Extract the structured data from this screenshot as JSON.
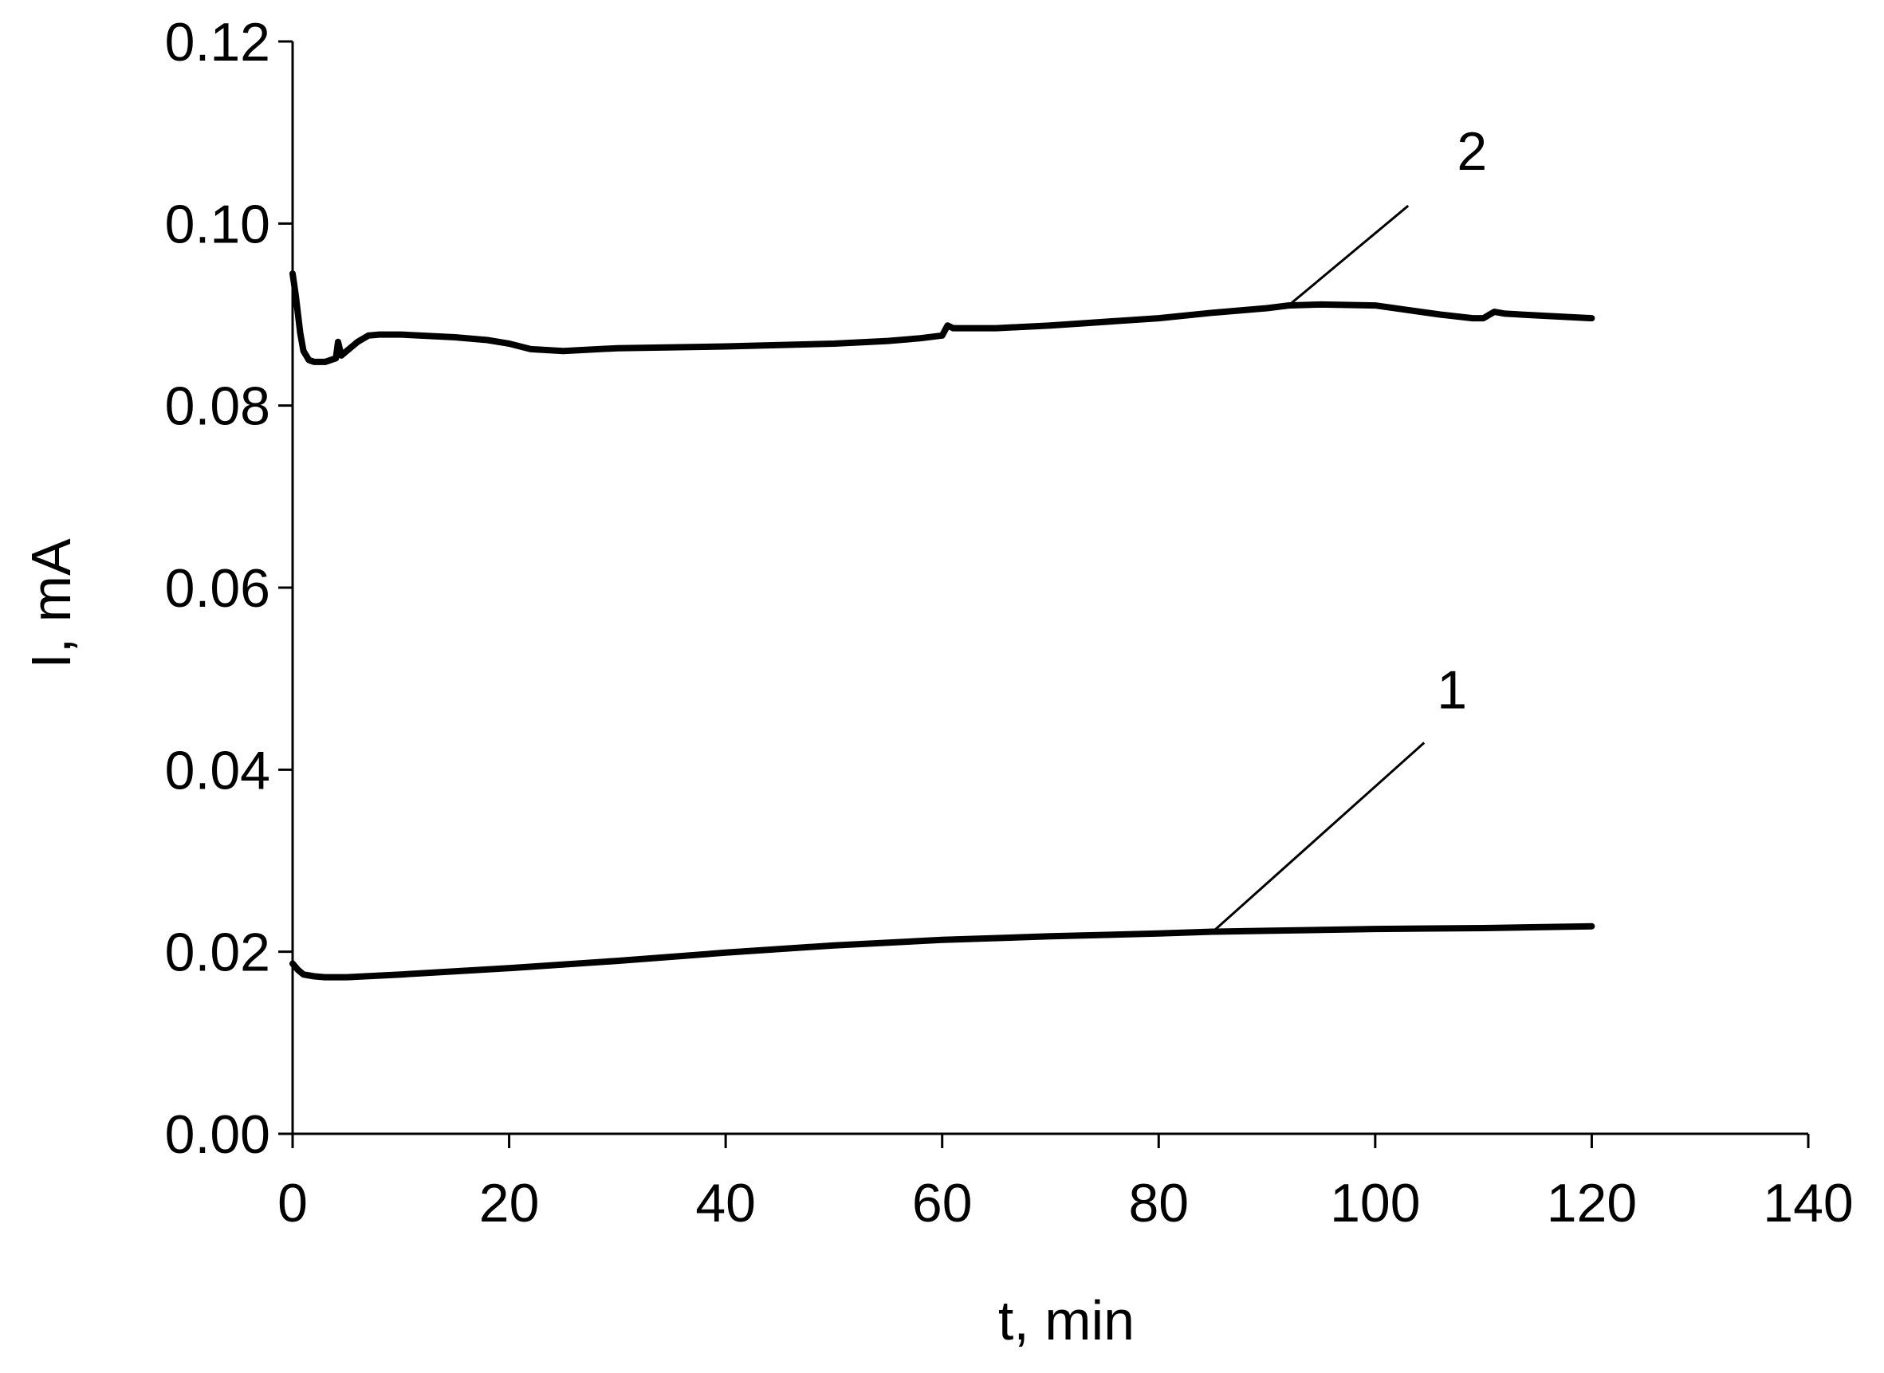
{
  "chart_data": {
    "type": "line",
    "title": "",
    "xlabel": "t, min",
    "ylabel": "I, mA",
    "xlim": [
      0,
      140
    ],
    "ylim": [
      0,
      0.12
    ],
    "x_ticks": [
      "0",
      "20",
      "40",
      "60",
      "80",
      "100",
      "120",
      "140"
    ],
    "y_ticks": [
      "0.00",
      "0.02",
      "0.04",
      "0.06",
      "0.08",
      "0.10",
      "0.12"
    ],
    "grid": false,
    "legend": "none",
    "series": [
      {
        "name": "1",
        "x": [
          0,
          0.5,
          1,
          2,
          3,
          5,
          10,
          20,
          30,
          40,
          50,
          60,
          70,
          80,
          85,
          90,
          100,
          110,
          120
        ],
        "y": [
          0.0187,
          0.018,
          0.0175,
          0.0173,
          0.0172,
          0.0172,
          0.0175,
          0.0182,
          0.019,
          0.0199,
          0.0207,
          0.0213,
          0.0217,
          0.022,
          0.0222,
          0.0223,
          0.0225,
          0.0226,
          0.0228
        ]
      },
      {
        "name": "2",
        "x": [
          0,
          0.3,
          0.7,
          1,
          1.5,
          2,
          3,
          4,
          4.2,
          4.5,
          5,
          6,
          7,
          8,
          10,
          15,
          18,
          20,
          22,
          25,
          30,
          40,
          50,
          55,
          58,
          60,
          60.5,
          61,
          62,
          65,
          70,
          80,
          85,
          90,
          92,
          95,
          100,
          103,
          106,
          109,
          110,
          111,
          112,
          115,
          120
        ],
        "y": [
          0.0945,
          0.092,
          0.088,
          0.086,
          0.085,
          0.0848,
          0.0848,
          0.0852,
          0.087,
          0.0855,
          0.086,
          0.087,
          0.0877,
          0.0878,
          0.0878,
          0.0875,
          0.0872,
          0.0868,
          0.0862,
          0.086,
          0.0863,
          0.0865,
          0.0868,
          0.0871,
          0.0874,
          0.0877,
          0.0888,
          0.0885,
          0.0885,
          0.0885,
          0.0888,
          0.0896,
          0.0902,
          0.0907,
          0.091,
          0.0911,
          0.091,
          0.0905,
          0.09,
          0.0896,
          0.0896,
          0.0903,
          0.0901,
          0.0899,
          0.0896
        ]
      }
    ],
    "annotations": [
      {
        "text": "2",
        "series": "2",
        "x": 92,
        "y": 0.091
      },
      {
        "text": "1",
        "series": "1",
        "x": 85,
        "y": 0.0222
      }
    ]
  }
}
